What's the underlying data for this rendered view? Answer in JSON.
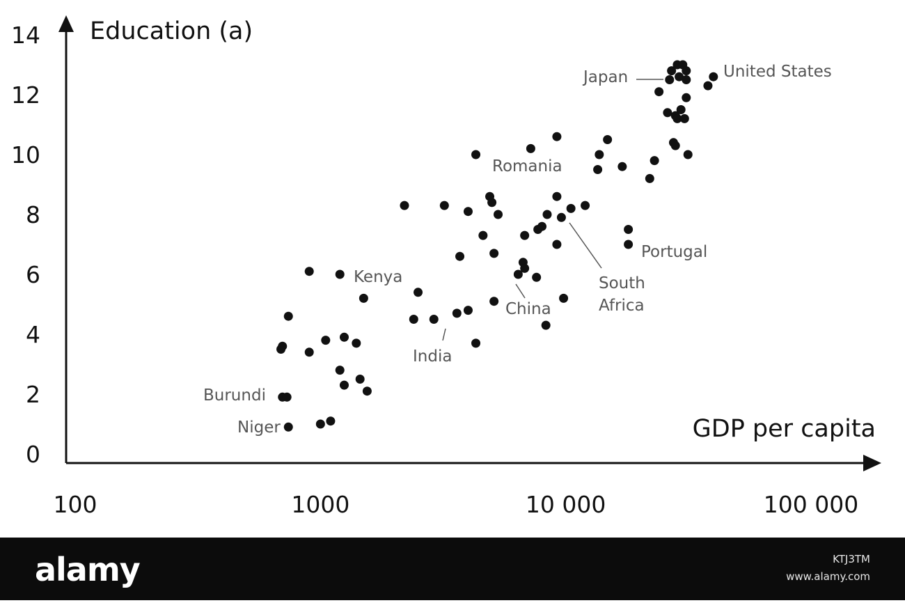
{
  "chart_data": {
    "type": "scatter",
    "title": "",
    "xlabel": "GDP per capita",
    "ylabel": "Education (a)",
    "x_scale": "log",
    "xlim": [
      100,
      100000
    ],
    "ylim": [
      0,
      14
    ],
    "x_ticks": [
      {
        "value": 100,
        "label": "100"
      },
      {
        "value": 1000,
        "label": "1000"
      },
      {
        "value": 10000,
        "label": "10 000"
      },
      {
        "value": 100000,
        "label": "100 000"
      }
    ],
    "y_ticks": [
      {
        "value": 0,
        "label": "0"
      },
      {
        "value": 2,
        "label": "2"
      },
      {
        "value": 4,
        "label": "4"
      },
      {
        "value": 6,
        "label": "6"
      },
      {
        "value": 8,
        "label": "8"
      },
      {
        "value": 10,
        "label": "10"
      },
      {
        "value": 12,
        "label": "12"
      },
      {
        "value": 14,
        "label": "14"
      }
    ],
    "grid": false,
    "points": [
      {
        "x": 700,
        "y": 1.9
      },
      {
        "x": 730,
        "y": 1.9
      },
      {
        "x": 740,
        "y": 0.9
      },
      {
        "x": 690,
        "y": 3.5
      },
      {
        "x": 700,
        "y": 3.6
      },
      {
        "x": 740,
        "y": 4.6
      },
      {
        "x": 900,
        "y": 6.1
      },
      {
        "x": 900,
        "y": 3.4
      },
      {
        "x": 1000,
        "y": 1.0
      },
      {
        "x": 1100,
        "y": 1.1
      },
      {
        "x": 1050,
        "y": 3.8
      },
      {
        "x": 1200,
        "y": 2.8
      },
      {
        "x": 1250,
        "y": 3.9
      },
      {
        "x": 1250,
        "y": 2.3
      },
      {
        "x": 1400,
        "y": 3.7
      },
      {
        "x": 1450,
        "y": 2.5
      },
      {
        "x": 1550,
        "y": 2.1
      },
      {
        "x": 1200,
        "y": 6.0
      },
      {
        "x": 1500,
        "y": 5.2
      },
      {
        "x": 2200,
        "y": 8.3
      },
      {
        "x": 2400,
        "y": 4.5
      },
      {
        "x": 2500,
        "y": 5.4
      },
      {
        "x": 2900,
        "y": 4.5
      },
      {
        "x": 3200,
        "y": 8.3
      },
      {
        "x": 3600,
        "y": 4.7
      },
      {
        "x": 3700,
        "y": 6.6
      },
      {
        "x": 4000,
        "y": 8.1
      },
      {
        "x": 4000,
        "y": 4.8
      },
      {
        "x": 4300,
        "y": 10.0
      },
      {
        "x": 4300,
        "y": 3.7
      },
      {
        "x": 4600,
        "y": 7.3
      },
      {
        "x": 4900,
        "y": 8.6
      },
      {
        "x": 5000,
        "y": 8.4
      },
      {
        "x": 5100,
        "y": 6.7
      },
      {
        "x": 5100,
        "y": 5.1
      },
      {
        "x": 5300,
        "y": 8.0
      },
      {
        "x": 6400,
        "y": 6.0
      },
      {
        "x": 6700,
        "y": 6.4
      },
      {
        "x": 6800,
        "y": 6.2
      },
      {
        "x": 6800,
        "y": 7.3
      },
      {
        "x": 7200,
        "y": 10.2
      },
      {
        "x": 7600,
        "y": 5.9
      },
      {
        "x": 7700,
        "y": 7.5
      },
      {
        "x": 8000,
        "y": 7.6
      },
      {
        "x": 8300,
        "y": 4.3
      },
      {
        "x": 8400,
        "y": 8.0
      },
      {
        "x": 9200,
        "y": 10.6
      },
      {
        "x": 9200,
        "y": 8.6
      },
      {
        "x": 9200,
        "y": 7.0
      },
      {
        "x": 9600,
        "y": 7.9
      },
      {
        "x": 9800,
        "y": 5.2
      },
      {
        "x": 10500,
        "y": 8.2
      },
      {
        "x": 12000,
        "y": 8.3
      },
      {
        "x": 13500,
        "y": 9.5
      },
      {
        "x": 13700,
        "y": 10.0
      },
      {
        "x": 14800,
        "y": 10.5
      },
      {
        "x": 17000,
        "y": 9.6
      },
      {
        "x": 18000,
        "y": 7.5
      },
      {
        "x": 18000,
        "y": 7.0
      },
      {
        "x": 22000,
        "y": 9.2
      },
      {
        "x": 23000,
        "y": 9.8
      },
      {
        "x": 24000,
        "y": 12.1
      },
      {
        "x": 26000,
        "y": 11.4
      },
      {
        "x": 26500,
        "y": 12.5
      },
      {
        "x": 27000,
        "y": 12.8
      },
      {
        "x": 27500,
        "y": 10.4
      },
      {
        "x": 28000,
        "y": 10.3
      },
      {
        "x": 28000,
        "y": 11.3
      },
      {
        "x": 28500,
        "y": 11.2
      },
      {
        "x": 28500,
        "y": 13.0
      },
      {
        "x": 29000,
        "y": 12.6
      },
      {
        "x": 29500,
        "y": 11.5
      },
      {
        "x": 30000,
        "y": 13.0
      },
      {
        "x": 30500,
        "y": 11.2
      },
      {
        "x": 31000,
        "y": 12.8
      },
      {
        "x": 31000,
        "y": 11.9
      },
      {
        "x": 31000,
        "y": 12.5
      },
      {
        "x": 31500,
        "y": 10.0
      },
      {
        "x": 38000,
        "y": 12.3
      },
      {
        "x": 40000,
        "y": 12.6
      }
    ],
    "annotations": [
      {
        "text": "Japan",
        "x": 29000,
        "y": 12.6
      },
      {
        "text": "United States",
        "x": 40000,
        "y": 12.6
      },
      {
        "text": "Romania",
        "x": 7200,
        "y": 10.2
      },
      {
        "text": "Portugal",
        "x": 18000,
        "y": 7.0
      },
      {
        "text": "South",
        "x": 9600,
        "y": 7.9
      },
      {
        "text": "Africa",
        "x": 9600,
        "y": 7.9
      },
      {
        "text": "Kenya",
        "x": 1200,
        "y": 6.0
      },
      {
        "text": "China",
        "x": 6400,
        "y": 6.0
      },
      {
        "text": "India",
        "x": 3600,
        "y": 4.7
      },
      {
        "text": "Burundi",
        "x": 700,
        "y": 1.9
      },
      {
        "text": "Niger",
        "x": 740,
        "y": 0.9
      }
    ]
  },
  "watermark": {
    "brand": "alamy",
    "image_id": "KTJ3TM",
    "url": "www.alamy.com"
  }
}
